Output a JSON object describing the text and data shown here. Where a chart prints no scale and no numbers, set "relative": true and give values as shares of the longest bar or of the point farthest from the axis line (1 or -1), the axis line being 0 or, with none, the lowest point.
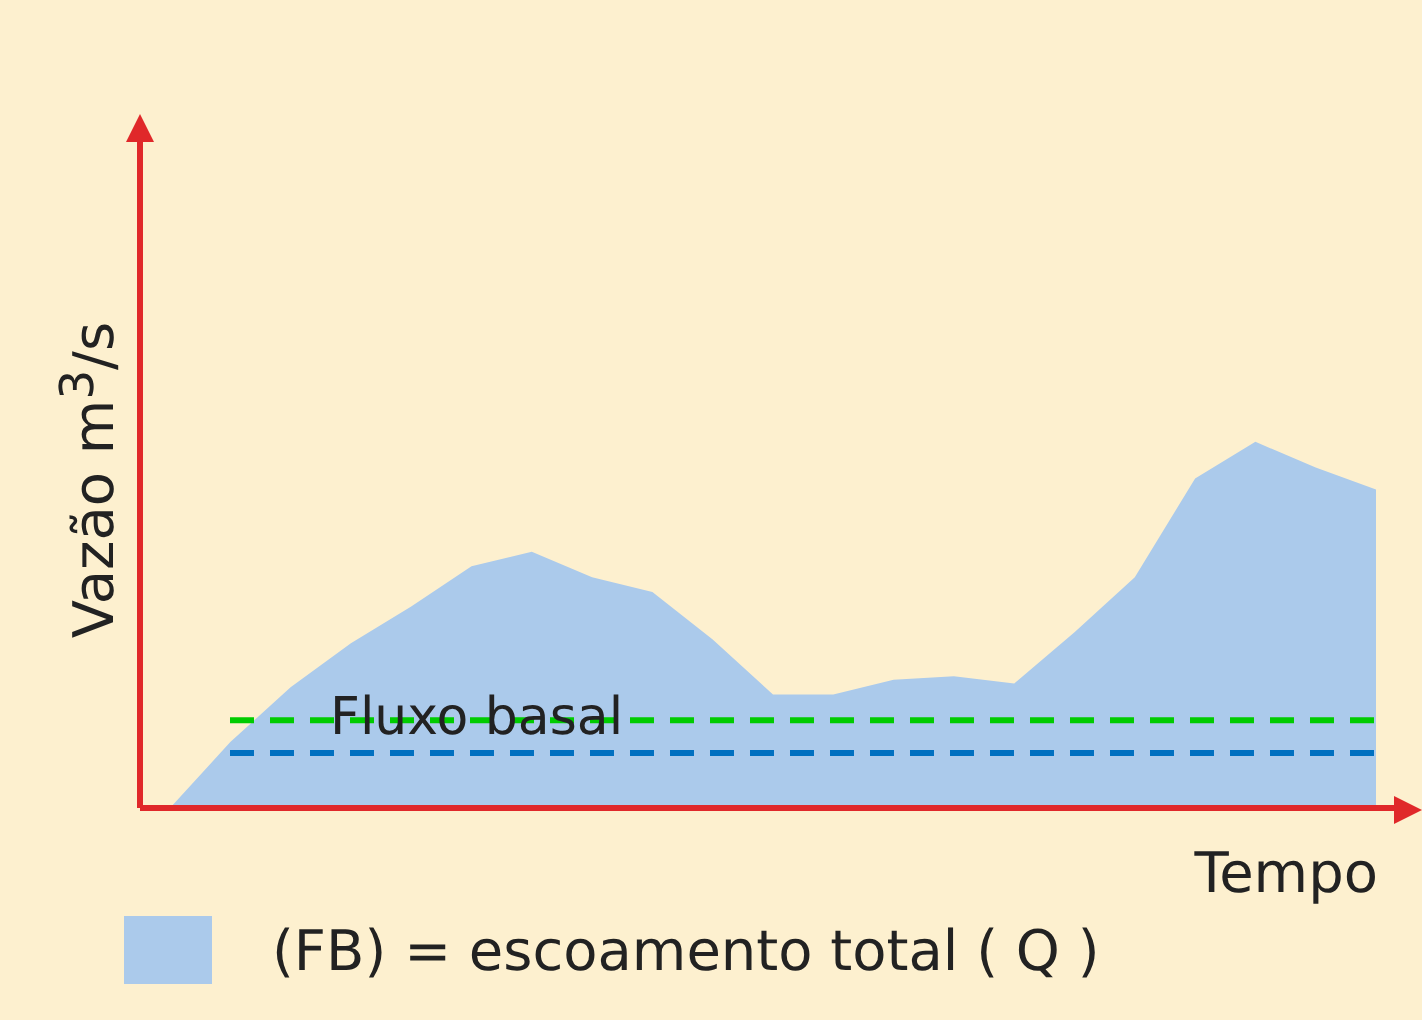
{
  "chart_data": {
    "type": "area",
    "relative": true,
    "xlabel": "Tempo",
    "ylabel": "Vazão m$^{3}$/s",
    "categories": [
      null,
      null,
      null,
      null,
      null,
      null,
      null,
      null,
      null,
      null,
      null,
      null,
      null,
      null,
      null,
      null,
      null,
      null,
      null,
      null,
      null
    ],
    "series": [
      {
        "name": "(FB) = escoamento total ( Q )",
        "color": "#abcaeb",
        "values": [
          0,
          0.18,
          0.33,
          0.45,
          0.55,
          0.66,
          0.7,
          0.63,
          0.59,
          0.46,
          0.31,
          0.31,
          0.35,
          0.36,
          0.34,
          0.48,
          0.63,
          0.9,
          1,
          0.93,
          0.87
        ]
      }
    ],
    "ref_lines": [
      {
        "axis": "y",
        "value": 0.24,
        "label": "Fluxo basal",
        "color": "#00cc00",
        "line_style": "dashed"
      },
      {
        "axis": "y",
        "value": 0.15,
        "color": "#0070c0",
        "line_style": "dashed"
      }
    ],
    "legend": "bottom left"
  }
}
